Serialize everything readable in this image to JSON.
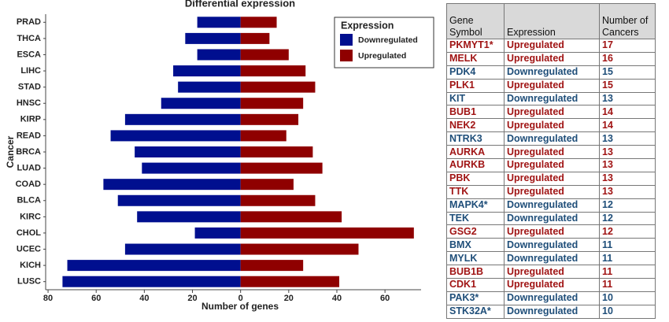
{
  "chart_data": {
    "type": "diverging-bar",
    "title": "Differential expression",
    "xlabel": "Number of genes",
    "ylabel": "Cancer",
    "categories": [
      "PRAD",
      "THCA",
      "ESCA",
      "LIHC",
      "STAD",
      "HNSC",
      "KIRP",
      "READ",
      "BRCA",
      "LUAD",
      "COAD",
      "BLCA",
      "KIRC",
      "CHOL",
      "UCEC",
      "KICH",
      "LUSC"
    ],
    "series": [
      {
        "name": "Downregulated",
        "color": "#000f8f",
        "values": [
          -18,
          -23,
          -18,
          -28,
          -26,
          -33,
          -48,
          -54,
          -44,
          -41,
          -57,
          -51,
          -43,
          -19,
          -48,
          -72,
          -74
        ]
      },
      {
        "name": "Upregulated",
        "color": "#8f0000",
        "values": [
          15,
          12,
          20,
          27,
          31,
          26,
          24,
          19,
          30,
          34,
          22,
          31,
          42,
          72,
          49,
          26,
          41
        ]
      }
    ],
    "xlim": [
      -81,
      75
    ],
    "xticks": [
      {
        "value": -80,
        "label": "80"
      },
      {
        "value": -60,
        "label": "60"
      },
      {
        "value": -40,
        "label": "40"
      },
      {
        "value": -20,
        "label": "20"
      },
      0,
      20,
      40,
      60
    ],
    "legend_title": "Expression",
    "legend": "top-right",
    "grid": false
  },
  "table": {
    "header": [
      "Gene Symbol",
      "Expression",
      "Number of Cancers"
    ],
    "rows": [
      [
        "PKMYT1*",
        "Upregulated",
        17
      ],
      [
        "MELK",
        "Upregulated",
        16
      ],
      [
        "PDK4",
        "Downregulated",
        15
      ],
      [
        "PLK1",
        "Upregulated",
        15
      ],
      [
        "KIT",
        "Downregulated",
        13
      ],
      [
        "BUB1",
        "Upregulated",
        14
      ],
      [
        "NEK2",
        "Upregulated",
        14
      ],
      [
        "NTRK3",
        "Downregulated",
        13
      ],
      [
        "AURKA",
        "Upregulated",
        13
      ],
      [
        "AURKB",
        "Upregulated",
        13
      ],
      [
        "PBK",
        "Upregulated",
        13
      ],
      [
        "TTK",
        "Upregulated",
        13
      ],
      [
        "MAPK4*",
        "Downregulated",
        12
      ],
      [
        "TEK",
        "Downregulated",
        12
      ],
      [
        "GSG2",
        "Upregulated",
        12
      ],
      [
        "BMX",
        "Downregulated",
        11
      ],
      [
        "MYLK",
        "Downregulated",
        11
      ],
      [
        "BUB1B",
        "Upregulated",
        11
      ],
      [
        "CDK1",
        "Upregulated",
        11
      ],
      [
        "PAK3*",
        "Downregulated",
        10
      ],
      [
        "STK32A*",
        "Downregulated",
        10
      ]
    ]
  }
}
